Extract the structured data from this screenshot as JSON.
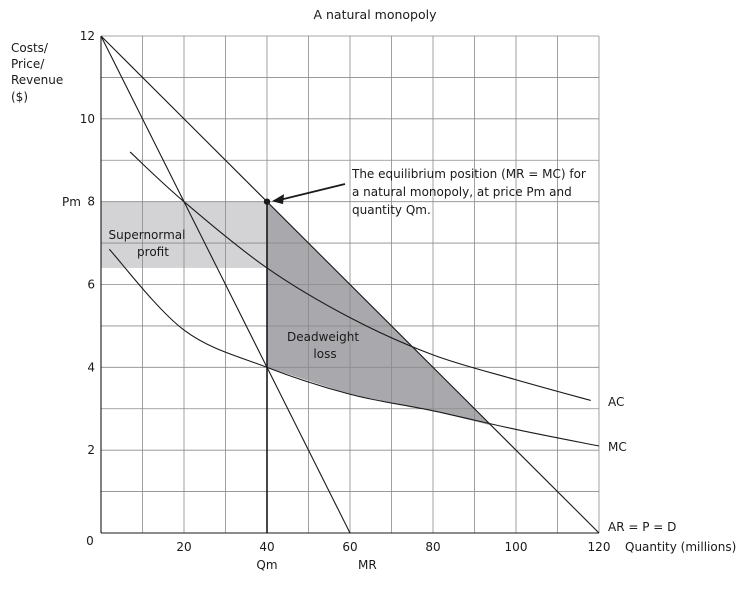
{
  "chart_data": {
    "type": "line",
    "title": "A natural monopoly",
    "ylabel": [
      "Costs/",
      "Price/",
      "Revenue",
      "($)"
    ],
    "xlabel": "Quantity (millions)",
    "xlim": [
      0,
      120
    ],
    "ylim": [
      0,
      12
    ],
    "x_ticks": [
      0,
      20,
      40,
      60,
      80,
      100,
      120
    ],
    "y_ticks": [
      0,
      2,
      4,
      6,
      8,
      10,
      12
    ],
    "grid": true,
    "series": [
      {
        "name": "AR = P = D",
        "points": [
          [
            0,
            12
          ],
          [
            120,
            0
          ]
        ]
      },
      {
        "name": "MR",
        "points": [
          [
            0,
            12
          ],
          [
            60,
            0
          ]
        ]
      },
      {
        "name": "AC",
        "points": [
          [
            7,
            9.2
          ],
          [
            20,
            8.0
          ],
          [
            40,
            6.4
          ],
          [
            60,
            5.2
          ],
          [
            80,
            4.3
          ],
          [
            100,
            3.7
          ],
          [
            118,
            3.2
          ]
        ]
      },
      {
        "name": "MC",
        "points": [
          [
            2,
            6.85
          ],
          [
            20,
            4.9
          ],
          [
            40,
            4.0
          ],
          [
            60,
            3.35
          ],
          [
            80,
            2.95
          ],
          [
            100,
            2.5
          ],
          [
            120,
            2.1
          ]
        ]
      }
    ],
    "equilibrium": {
      "q": 40,
      "p": 8
    },
    "shaded_regions": {
      "supernormal_profit": {
        "label": [
          "Supernormal",
          "profit"
        ],
        "x": [
          0,
          40
        ],
        "y": [
          6.4,
          8
        ]
      },
      "deadweight_loss": {
        "label": [
          "Deadweight",
          "loss"
        ],
        "points": [
          [
            40,
            8
          ],
          [
            94,
            2.6
          ],
          [
            40,
            4
          ]
        ]
      }
    },
    "annotation": [
      "The equilibrium position (MR = MC) for",
      "a natural monopoly, at price Pm and",
      "quantity Qm."
    ],
    "markers": {
      "pm": "Pm",
      "qm": "Qm"
    },
    "colors": {
      "profit_fill": "#d3d3d5",
      "dwl_fill": "#a9a9ad",
      "grid": "#8a8a8a",
      "ink": "#1a1a1a"
    }
  }
}
